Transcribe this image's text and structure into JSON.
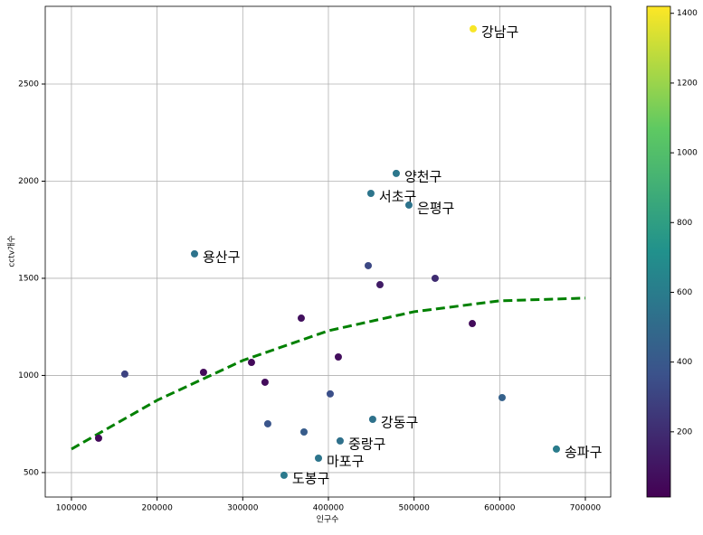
{
  "chart_data": {
    "type": "scatter",
    "xlabel": "인구수",
    "ylabel": "cctv개수",
    "xlim": [
      69400,
      729600
    ],
    "ylim": [
      374,
      2900
    ],
    "xticks": [
      100000,
      200000,
      300000,
      400000,
      500000,
      600000,
      700000
    ],
    "yticks": [
      500,
      1000,
      1500,
      2000,
      2500
    ],
    "grid": true,
    "colormap": "viridis",
    "clim": [
      13,
      1420
    ],
    "cticks": [
      200,
      400,
      600,
      800,
      1000,
      1200,
      1400
    ],
    "series": [
      {
        "x": [
          569000,
          479200,
          449600,
          494000,
          243700,
          446500,
          460200,
          524600,
          368300,
          568000,
          411600,
          162300,
          254200,
          310200,
          326000,
          402100,
          602800,
          451700,
          329200,
          371500,
          413700,
          666200,
          388400,
          348200,
          131700
        ],
        "y": [
          2784,
          2040,
          1937,
          1877,
          1626,
          1565,
          1467,
          1500,
          1295,
          1267,
          1095,
          1007,
          1016,
          1067,
          965,
          905,
          886,
          774,
          751,
          709,
          663,
          621,
          574,
          486,
          677
        ],
        "c": [
          1410,
          570,
          560,
          550,
          550,
          320,
          130,
          200,
          80,
          60,
          70,
          300,
          50,
          50,
          60,
          350,
          450,
          540,
          380,
          420,
          530,
          600,
          560,
          580,
          50
        ],
        "labels": [
          "강남구",
          "양천구",
          "서초구",
          "은평구",
          "용산구",
          null,
          null,
          null,
          null,
          null,
          null,
          null,
          null,
          null,
          null,
          null,
          null,
          "강동구",
          null,
          null,
          "중랑구",
          "송파구",
          "마포구",
          "도봉구",
          null
        ]
      }
    ],
    "fit": {
      "color": "#008000",
      "dashed": true,
      "x": [
        100000,
        200000,
        300000,
        400000,
        500000,
        600000,
        700000
      ],
      "y": [
        621,
        872,
        1077,
        1230,
        1328,
        1384,
        1398
      ]
    }
  }
}
